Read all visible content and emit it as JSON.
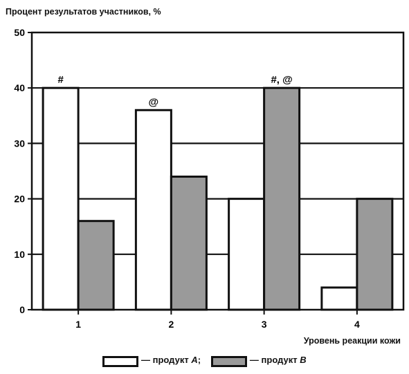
{
  "chart_data": {
    "type": "bar",
    "ylabel": "Процент результатов участников, %",
    "xlabel": "Уровень реакции кожи",
    "categories": [
      "1",
      "2",
      "3",
      "4"
    ],
    "ylim": [
      0,
      50
    ],
    "yticks": [
      0,
      10,
      20,
      30,
      40,
      50
    ],
    "grid": true,
    "legend_position": "bottom",
    "series": [
      {
        "name": "продукт A",
        "color": "#ffffff",
        "values": [
          40,
          36,
          20,
          4
        ]
      },
      {
        "name": "продукт B",
        "color": "#9a9a9a",
        "values": [
          16,
          24,
          40,
          20
        ]
      }
    ],
    "annotations": [
      {
        "category": "1",
        "series": "продукт A",
        "text": "#"
      },
      {
        "category": "2",
        "series": "продукт A",
        "text": "@"
      },
      {
        "category": "3",
        "series": "продукт B",
        "text": "#, @"
      }
    ]
  },
  "legend": {
    "item_a_prefix": "— продукт ",
    "item_a_letter": "A",
    "item_a_suffix": ";",
    "item_b_prefix": "— продукт ",
    "item_b_letter": "B",
    "swatch_a_color": "#ffffff",
    "swatch_b_color": "#9a9a9a"
  }
}
